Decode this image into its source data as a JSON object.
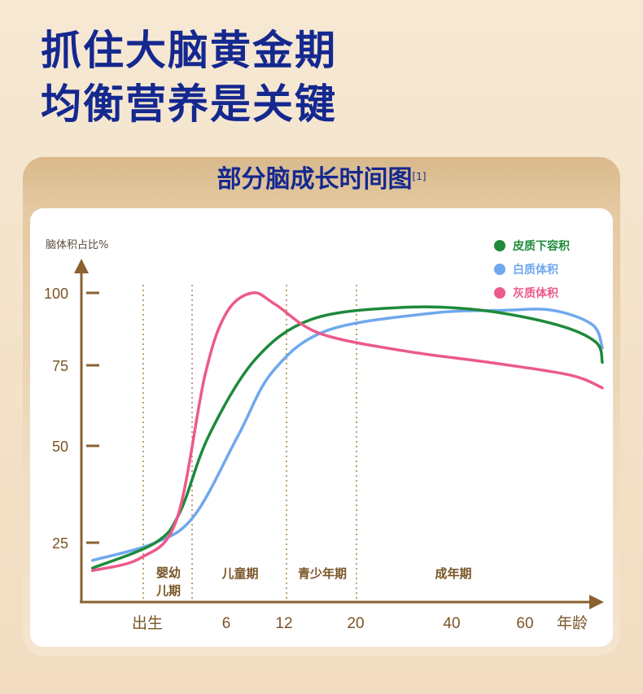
{
  "headline": {
    "line1": "抓住大脑黄金期",
    "line2": "均衡营养是关键"
  },
  "card": {
    "title": "部分脑成长时间图",
    "footnote": "[1]"
  },
  "colors": {
    "headline": "#14288f",
    "axis": "#8a6230",
    "cortical": "#1e8a3a",
    "white": "#6fa8ee",
    "gray": "#ec5a8a"
  },
  "chart_data": {
    "type": "line",
    "ylabel": "脑体积占比%",
    "xlabel": "年龄",
    "y_ticks": [
      100,
      75,
      50,
      25
    ],
    "x_tick_labels": [
      "出生",
      "6",
      "12",
      "20",
      "40",
      "60"
    ],
    "x_categories": [
      "出生",
      "6",
      "12",
      "20",
      "40",
      "60"
    ],
    "phases": [
      {
        "label_line1": "婴幼",
        "label_line2": "儿期"
      },
      {
        "label_line1": "儿童期",
        "label_line2": ""
      },
      {
        "label_line1": "青少年期",
        "label_line2": ""
      },
      {
        "label_line1": "成年期",
        "label_line2": ""
      }
    ],
    "series": [
      {
        "name": "皮质下容积",
        "color": "#1e8a3a",
        "points": [
          [
            -0.85,
            15
          ],
          [
            0,
            25
          ],
          [
            0.35,
            33
          ],
          [
            0.75,
            53
          ],
          [
            1.5,
            77
          ],
          [
            2.4,
            91
          ],
          [
            3.5,
            95
          ],
          [
            4.4,
            94
          ],
          [
            5.7,
            89
          ],
          [
            6.8,
            83
          ],
          [
            7.5,
            76
          ]
        ]
      },
      {
        "name": "白质体积",
        "color": "#6fa8ee",
        "points": [
          [
            -0.85,
            18
          ],
          [
            0,
            25
          ],
          [
            0.55,
            32
          ],
          [
            1.2,
            53
          ],
          [
            1.8,
            73
          ],
          [
            2.6,
            87
          ],
          [
            3.8,
            93
          ],
          [
            4.7,
            94
          ],
          [
            5.6,
            94
          ],
          [
            6.7,
            89
          ],
          [
            7.5,
            81
          ]
        ]
      },
      {
        "name": "灰质体积",
        "color": "#ec5a8a",
        "points": [
          [
            -0.85,
            14
          ],
          [
            -0.2,
            19
          ],
          [
            0.3,
            31
          ],
          [
            0.7,
            72
          ],
          [
            1.0,
            93
          ],
          [
            1.45,
            100
          ],
          [
            1.85,
            96
          ],
          [
            2.5,
            86
          ],
          [
            3.5,
            80
          ],
          [
            4.5,
            76
          ],
          [
            6.0,
            72
          ],
          [
            7.5,
            68
          ]
        ]
      }
    ]
  }
}
